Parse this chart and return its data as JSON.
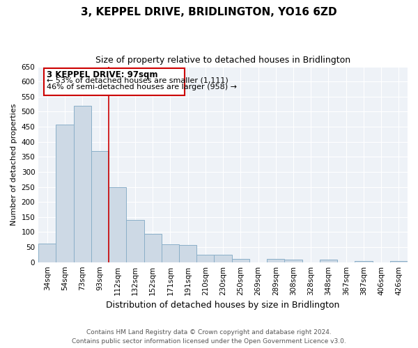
{
  "title": "3, KEPPEL DRIVE, BRIDLINGTON, YO16 6ZD",
  "subtitle": "Size of property relative to detached houses in Bridlington",
  "xlabel": "Distribution of detached houses by size in Bridlington",
  "ylabel": "Number of detached properties",
  "bar_labels": [
    "34sqm",
    "54sqm",
    "73sqm",
    "93sqm",
    "112sqm",
    "132sqm",
    "152sqm",
    "171sqm",
    "191sqm",
    "210sqm",
    "230sqm",
    "250sqm",
    "269sqm",
    "289sqm",
    "308sqm",
    "328sqm",
    "348sqm",
    "367sqm",
    "387sqm",
    "406sqm",
    "426sqm"
  ],
  "bar_values": [
    62,
    458,
    520,
    370,
    248,
    140,
    95,
    60,
    57,
    25,
    25,
    10,
    0,
    10,
    8,
    0,
    8,
    0,
    5,
    0,
    3
  ],
  "bar_color": "#cdd9e5",
  "bar_edge_color": "#8aafc8",
  "vline_x_idx": 3,
  "vline_color": "#cc0000",
  "ylim": [
    0,
    650
  ],
  "yticks": [
    0,
    50,
    100,
    150,
    200,
    250,
    300,
    350,
    400,
    450,
    500,
    550,
    600,
    650
  ],
  "annotation_title": "3 KEPPEL DRIVE: 97sqm",
  "annotation_line1": "← 53% of detached houses are smaller (1,111)",
  "annotation_line2": "46% of semi-detached houses are larger (958) →",
  "annotation_box_color": "#ffffff",
  "annotation_box_edge": "#cc0000",
  "footer_line1": "Contains HM Land Registry data © Crown copyright and database right 2024.",
  "footer_line2": "Contains public sector information licensed under the Open Government Licence v3.0.",
  "background_color": "#eef2f7",
  "grid_color": "#ffffff",
  "title_fontsize": 11,
  "subtitle_fontsize": 9,
  "xlabel_fontsize": 9,
  "ylabel_fontsize": 8,
  "tick_fontsize": 7.5,
  "footer_fontsize": 6.5
}
